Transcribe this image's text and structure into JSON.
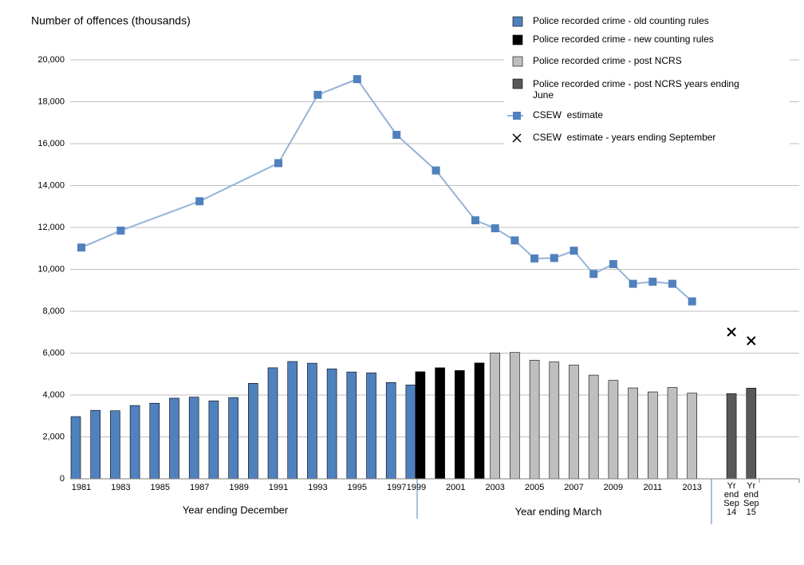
{
  "chart_data": {
    "type": "bar",
    "y_label": "Number of offences (thousands)",
    "annotations": [
      "Year ending December",
      "Year ending March"
    ],
    "categories": [
      "1981",
      null,
      "1983",
      null,
      "1985",
      null,
      "1987",
      null,
      "1989",
      null,
      "1991",
      null,
      "1993",
      null,
      "1995",
      null,
      "1997",
      "1999",
      null,
      "2001",
      null,
      "2003",
      null,
      "2005",
      null,
      "2007",
      null,
      "2009",
      null,
      "2011",
      null,
      "2013",
      null,
      "Yr end Sep 14",
      "Yr end Sep 15"
    ],
    "series": [
      {
        "name": "Police recorded crime - old counting rules",
        "type": "bar",
        "color": "#4f81bd",
        "values": [
          2970,
          3270,
          3250,
          3500,
          3610,
          3850,
          3900,
          3720,
          3880,
          4560,
          5300,
          5600,
          5520,
          5250,
          5100,
          5060,
          4600,
          4480,
          null,
          null,
          null,
          null,
          null,
          null,
          null,
          null,
          null,
          null,
          null,
          null,
          null,
          null,
          null,
          null,
          null
        ]
      },
      {
        "name": "Police recorded crime - new counting rules",
        "type": "bar",
        "color": "#000000",
        "values": [
          null,
          null,
          null,
          null,
          null,
          null,
          null,
          null,
          null,
          null,
          null,
          null,
          null,
          null,
          null,
          null,
          null,
          5110,
          5300,
          5170,
          5530,
          null,
          null,
          null,
          null,
          null,
          null,
          null,
          null,
          null,
          null,
          null,
          null,
          null,
          null
        ]
      },
      {
        "name": "Police recorded crime - post NCRS",
        "type": "bar",
        "color": "#bfbfbf",
        "values": [
          null,
          null,
          null,
          null,
          null,
          null,
          null,
          null,
          null,
          null,
          null,
          null,
          null,
          null,
          null,
          null,
          null,
          null,
          null,
          null,
          null,
          6010,
          6030,
          5660,
          5580,
          5430,
          4950,
          4700,
          4340,
          4150,
          4360,
          4090,
          null,
          null,
          null
        ]
      },
      {
        "name": "Police recorded crime - post NCRS years ending June",
        "type": "bar",
        "color": "#595959",
        "values": [
          null,
          null,
          null,
          null,
          null,
          null,
          null,
          null,
          null,
          null,
          null,
          null,
          null,
          null,
          null,
          null,
          null,
          null,
          null,
          null,
          null,
          null,
          null,
          null,
          null,
          null,
          null,
          null,
          null,
          null,
          null,
          null,
          null,
          4070,
          4330
        ]
      },
      {
        "name": "CSEW  estimate",
        "type": "line",
        "color": "#95b3d7",
        "marker_color": "#4f81bd",
        "values": [
          11040,
          null,
          11850,
          null,
          null,
          null,
          13250,
          null,
          null,
          null,
          15070,
          null,
          18330,
          null,
          19080,
          null,
          16420,
          null,
          14720,
          null,
          12340,
          11960,
          11380,
          10520,
          10540,
          10890,
          9780,
          10250,
          9310,
          9410,
          9310,
          8470,
          null,
          null,
          null
        ]
      },
      {
        "name": "CSEW  estimate - years ending September",
        "type": "scatter",
        "color": "#000000",
        "values": [
          null,
          null,
          null,
          null,
          null,
          null,
          null,
          null,
          null,
          null,
          null,
          null,
          null,
          null,
          null,
          null,
          null,
          null,
          null,
          null,
          null,
          null,
          null,
          null,
          null,
          null,
          null,
          null,
          null,
          null,
          null,
          null,
          null,
          7010,
          6590
        ]
      }
    ],
    "ylim": [
      0,
      20000
    ],
    "yticks": [
      0,
      {
        "value": 2000,
        "label": "2,000"
      },
      {
        "value": 4000,
        "label": "4,000"
      },
      {
        "value": 6000,
        "label": "6,000"
      },
      {
        "value": 8000,
        "label": "8,000"
      },
      {
        "value": 10000,
        "label": "10,000"
      },
      {
        "value": 12000,
        "label": "12,000"
      },
      {
        "value": 14000,
        "label": "14,000"
      },
      {
        "value": 16000,
        "label": "16,000"
      },
      {
        "value": 18000,
        "label": "18,000"
      },
      {
        "value": 20000,
        "label": "20,000"
      }
    ],
    "grid": true
  }
}
